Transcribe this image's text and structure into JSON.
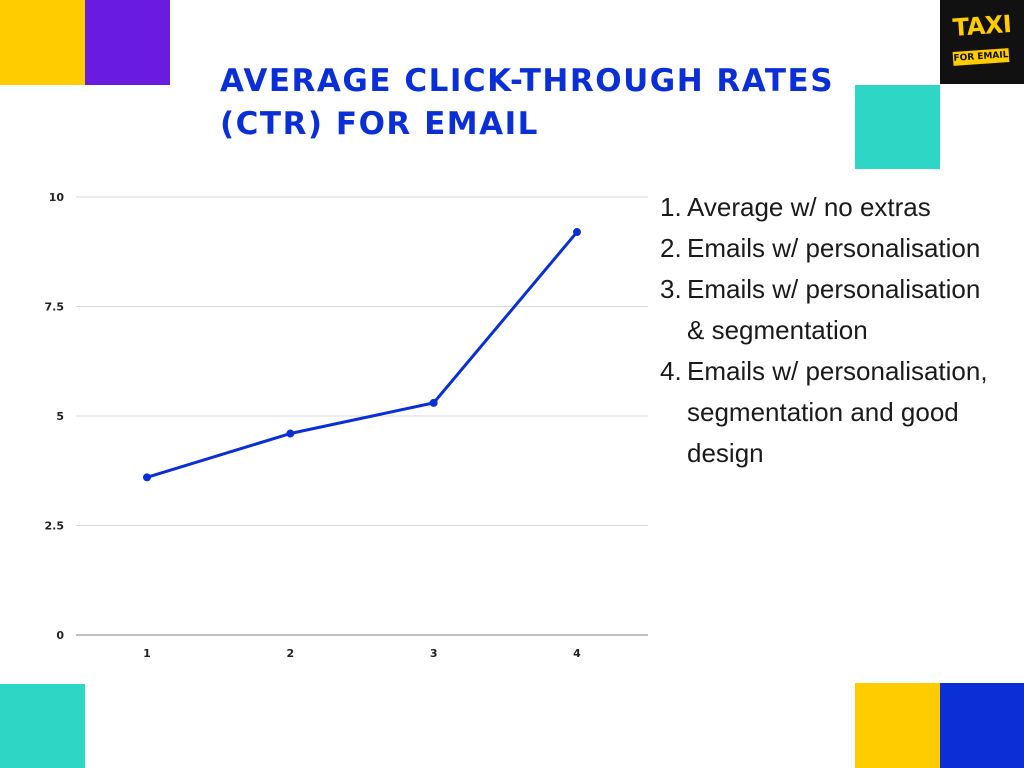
{
  "title": "AVERAGE CLICK-THROUGH RATES (CTR) FOR EMAIL",
  "logo": {
    "primary": "TAXI",
    "secondary": "FOR EMAIL"
  },
  "colors": {
    "accent_blue": "#0A2FD6",
    "yellow": "#FFCC00",
    "purple": "#6A1BE0",
    "teal": "#2ED6C6",
    "gridline": "#d9d9d9"
  },
  "legend": [
    {
      "number": "1.",
      "text": "Average w/ no extras"
    },
    {
      "number": "2.",
      "text": "Emails w/ personalisation"
    },
    {
      "number": "3.",
      "text": "Emails w/ personalisation & segmentation"
    },
    {
      "number": "4.",
      "text": "Emails w/ personalisation, segmentation and good design"
    }
  ],
  "chart_data": {
    "type": "line",
    "title": "AVERAGE CLICK-THROUGH RATES (CTR) FOR EMAIL",
    "xlabel": "",
    "ylabel": "",
    "x": [
      "1",
      "2",
      "3",
      "4"
    ],
    "series": [
      {
        "values": [
          3.6,
          4.6,
          5.3,
          9.2
        ]
      }
    ],
    "ylim": [
      0,
      10
    ],
    "yticks": [
      0,
      2.5,
      5,
      7.5,
      10
    ],
    "ytick_labels": [
      "0",
      "2.5",
      "5",
      "7.5",
      "10"
    ],
    "grid": true,
    "markers": true,
    "legend_placement": "right"
  }
}
